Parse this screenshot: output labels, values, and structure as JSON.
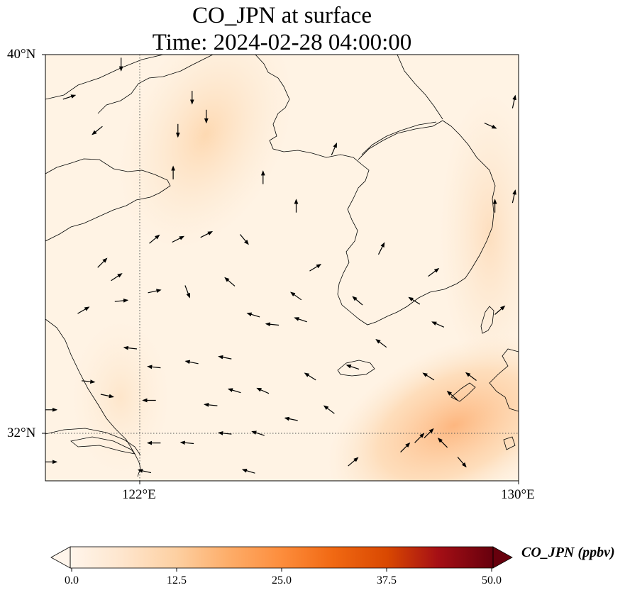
{
  "title": {
    "line1": "CO_JPN at surface",
    "line2": "Time: 2024-02-28 04:00:00"
  },
  "map": {
    "extent": {
      "lon_min": 120,
      "lon_max": 130,
      "lat_min": 31,
      "lat_max": 40
    },
    "gridlines": {
      "lons": [
        122
      ],
      "lats": [
        32
      ],
      "style": "dotted"
    },
    "lat_labels": [
      "40°N",
      "32°N"
    ],
    "lon_labels": [
      "122°E",
      "130°E"
    ],
    "background_color": "#fff4e6",
    "plume_color": "#fdd2a6",
    "coastline_color": "#000000"
  },
  "colorbar": {
    "label": "CO_JPN (ppbv)",
    "ticks": [
      "0.0",
      "12.5",
      "25.0",
      "37.5",
      "50.0"
    ],
    "min": 0,
    "max": 50,
    "colormap": [
      "#fff5eb",
      "#fee6ce",
      "#fdd0a2",
      "#fdae6b",
      "#fd8d3c",
      "#f16913",
      "#d94801",
      "#a50f15",
      "#67000d"
    ],
    "extend": "both"
  },
  "wind_vectors": [
    {
      "lon": 121.6,
      "lat": 39.8,
      "u": 0.0,
      "v": -1.0
    },
    {
      "lon": 120.5,
      "lat": 39.1,
      "u": 0.6,
      "v": 0.2
    },
    {
      "lon": 121.1,
      "lat": 38.4,
      "u": -0.5,
      "v": -0.4
    },
    {
      "lon": 123.1,
      "lat": 39.1,
      "u": 0.0,
      "v": -1.0
    },
    {
      "lon": 123.4,
      "lat": 38.7,
      "u": 0.0,
      "v": -1.0
    },
    {
      "lon": 122.8,
      "lat": 38.4,
      "u": 0.0,
      "v": -1.0
    },
    {
      "lon": 122.7,
      "lat": 37.5,
      "u": 0.0,
      "v": 1.0
    },
    {
      "lon": 124.6,
      "lat": 37.4,
      "u": 0.0,
      "v": 1.0
    },
    {
      "lon": 125.3,
      "lat": 36.8,
      "u": 0.0,
      "v": 1.0
    },
    {
      "lon": 122.3,
      "lat": 36.1,
      "u": 0.6,
      "v": 0.5
    },
    {
      "lon": 122.8,
      "lat": 36.1,
      "u": 0.6,
      "v": 0.3
    },
    {
      "lon": 123.4,
      "lat": 36.2,
      "u": 0.6,
      "v": 0.3
    },
    {
      "lon": 124.2,
      "lat": 36.1,
      "u": 0.5,
      "v": -0.6
    },
    {
      "lon": 125.7,
      "lat": 35.5,
      "u": 0.5,
      "v": 0.3
    },
    {
      "lon": 121.2,
      "lat": 35.6,
      "u": 0.5,
      "v": 0.5
    },
    {
      "lon": 121.5,
      "lat": 35.3,
      "u": 0.6,
      "v": 0.4
    },
    {
      "lon": 123.9,
      "lat": 35.2,
      "u": -0.7,
      "v": 0.6
    },
    {
      "lon": 123.0,
      "lat": 35.0,
      "u": 0.3,
      "v": -0.8
    },
    {
      "lon": 122.3,
      "lat": 35.0,
      "u": 0.9,
      "v": 0.2
    },
    {
      "lon": 125.3,
      "lat": 34.9,
      "u": -0.7,
      "v": 0.5
    },
    {
      "lon": 120.8,
      "lat": 34.6,
      "u": 0.7,
      "v": 0.4
    },
    {
      "lon": 121.6,
      "lat": 34.8,
      "u": 0.9,
      "v": 0.1
    },
    {
      "lon": 124.4,
      "lat": 34.5,
      "u": -1.0,
      "v": 0.3
    },
    {
      "lon": 124.8,
      "lat": 34.3,
      "u": -1.0,
      "v": 0.1
    },
    {
      "lon": 125.4,
      "lat": 34.4,
      "u": -0.9,
      "v": 0.3
    },
    {
      "lon": 121.8,
      "lat": 33.8,
      "u": -0.9,
      "v": 0.1
    },
    {
      "lon": 122.3,
      "lat": 33.4,
      "u": -1.0,
      "v": 0.1
    },
    {
      "lon": 123.1,
      "lat": 33.5,
      "u": -1.0,
      "v": 0.2
    },
    {
      "lon": 123.8,
      "lat": 33.6,
      "u": -1.0,
      "v": 0.2
    },
    {
      "lon": 120.9,
      "lat": 33.1,
      "u": 1.0,
      "v": -0.1
    },
    {
      "lon": 121.3,
      "lat": 32.8,
      "u": 1.0,
      "v": -0.2
    },
    {
      "lon": 122.2,
      "lat": 32.7,
      "u": -1.0,
      "v": 0.0
    },
    {
      "lon": 123.5,
      "lat": 32.6,
      "u": -1.0,
      "v": 0.1
    },
    {
      "lon": 124.0,
      "lat": 32.9,
      "u": -1.0,
      "v": 0.3
    },
    {
      "lon": 124.6,
      "lat": 32.9,
      "u": -0.9,
      "v": 0.4
    },
    {
      "lon": 125.6,
      "lat": 33.2,
      "u": -0.8,
      "v": 0.5
    },
    {
      "lon": 126.5,
      "lat": 33.4,
      "u": -0.9,
      "v": 0.3
    },
    {
      "lon": 127.1,
      "lat": 33.9,
      "u": -0.8,
      "v": 0.6
    },
    {
      "lon": 126.6,
      "lat": 34.8,
      "u": -0.7,
      "v": 0.6
    },
    {
      "lon": 127.8,
      "lat": 34.8,
      "u": -0.8,
      "v": 0.5
    },
    {
      "lon": 128.2,
      "lat": 35.4,
      "u": 0.8,
      "v": 0.6
    },
    {
      "lon": 129.6,
      "lat": 34.6,
      "u": 0.7,
      "v": 0.6
    },
    {
      "lon": 128.3,
      "lat": 34.3,
      "u": -0.9,
      "v": 0.4
    },
    {
      "lon": 128.1,
      "lat": 33.2,
      "u": -0.8,
      "v": 0.5
    },
    {
      "lon": 128.6,
      "lat": 32.8,
      "u": -0.7,
      "v": 0.6
    },
    {
      "lon": 129.0,
      "lat": 33.2,
      "u": -0.8,
      "v": 0.6
    },
    {
      "lon": 123.8,
      "lat": 32.0,
      "u": -1.0,
      "v": 0.1
    },
    {
      "lon": 124.5,
      "lat": 32.0,
      "u": -0.9,
      "v": 0.3
    },
    {
      "lon": 125.2,
      "lat": 32.3,
      "u": -1.0,
      "v": 0.2
    },
    {
      "lon": 126.0,
      "lat": 32.5,
      "u": -0.8,
      "v": 0.6
    },
    {
      "lon": 127.6,
      "lat": 31.7,
      "u": 0.7,
      "v": 0.7
    },
    {
      "lon": 127.9,
      "lat": 31.9,
      "u": 0.7,
      "v": 0.7
    },
    {
      "lon": 128.1,
      "lat": 32.0,
      "u": 0.7,
      "v": 0.7
    },
    {
      "lon": 128.4,
      "lat": 31.8,
      "u": -0.7,
      "v": 0.7
    },
    {
      "lon": 126.5,
      "lat": 31.4,
      "u": 0.7,
      "v": 0.6
    },
    {
      "lon": 128.8,
      "lat": 31.4,
      "u": 0.6,
      "v": -0.7
    },
    {
      "lon": 122.3,
      "lat": 31.8,
      "u": -1.0,
      "v": 0.0
    },
    {
      "lon": 123.0,
      "lat": 31.8,
      "u": -1.0,
      "v": 0.1
    },
    {
      "lon": 124.3,
      "lat": 31.2,
      "u": -1.0,
      "v": 0.3
    },
    {
      "lon": 122.1,
      "lat": 31.2,
      "u": -0.9,
      "v": 0.2
    },
    {
      "lon": 120.1,
      "lat": 31.4,
      "u": 1.0,
      "v": 0.0
    },
    {
      "lon": 120.1,
      "lat": 32.5,
      "u": 1.0,
      "v": 0.0
    },
    {
      "lon": 129.9,
      "lat": 39.0,
      "u": 0.2,
      "v": 0.9
    },
    {
      "lon": 129.4,
      "lat": 38.5,
      "u": 0.9,
      "v": -0.4
    },
    {
      "lon": 126.1,
      "lat": 38.0,
      "u": 0.3,
      "v": 0.7
    },
    {
      "lon": 129.9,
      "lat": 37.0,
      "u": 0.2,
      "v": 0.9
    },
    {
      "lon": 129.5,
      "lat": 36.8,
      "u": 0.0,
      "v": 1.0
    },
    {
      "lon": 127.1,
      "lat": 35.9,
      "u": 0.3,
      "v": 0.6
    }
  ]
}
